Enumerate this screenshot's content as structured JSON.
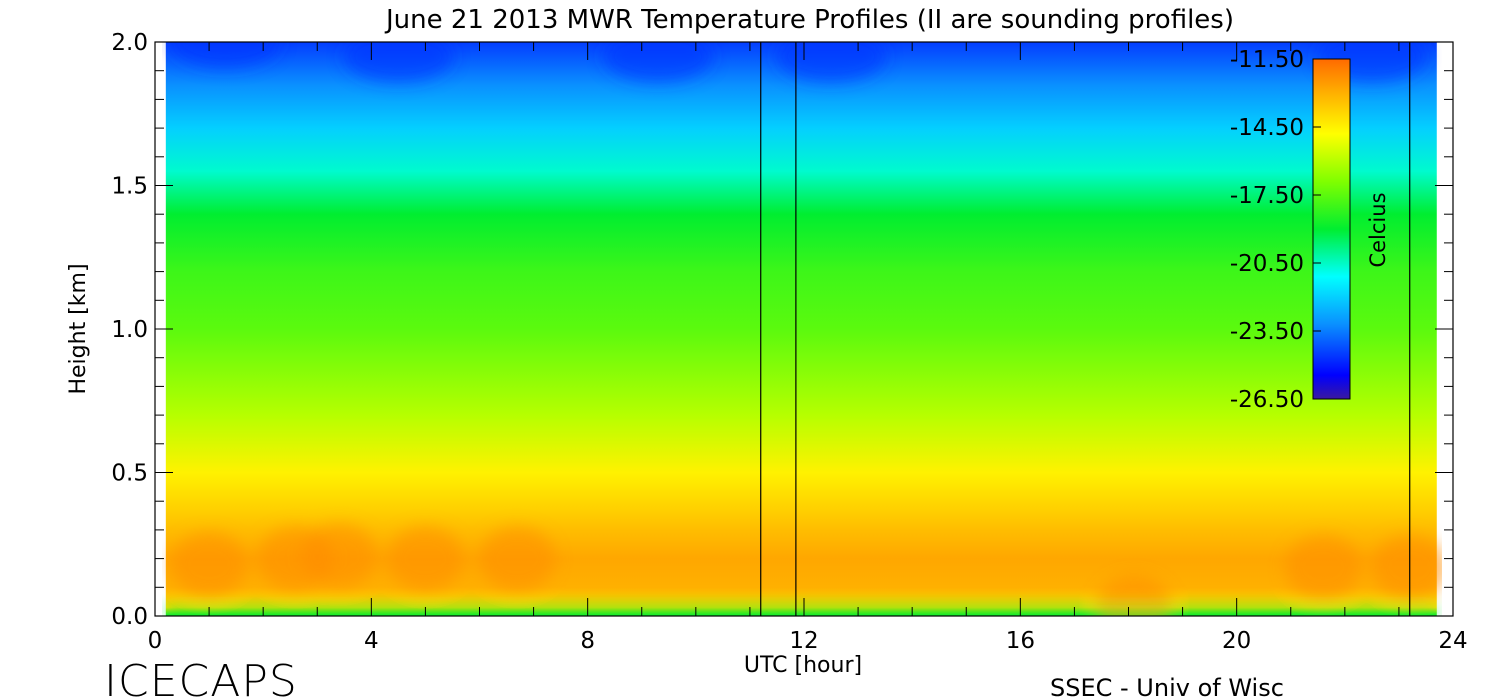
{
  "chart_data": {
    "type": "heatmap",
    "title": "June 21 2013 MWR Temperature Profiles (II are sounding profiles)",
    "xlabel": "UTC [hour]",
    "ylabel": "Height [km]",
    "xlim": [
      0,
      24
    ],
    "ylim": [
      0,
      2.0
    ],
    "x_ticks": [
      "0",
      "4",
      "8",
      "12",
      "16",
      "20",
      "24"
    ],
    "y_ticks": [
      "0.0",
      "0.5",
      "1.0",
      "1.5",
      "2.0"
    ],
    "colorbar": {
      "label": "Celcius",
      "range": [
        -26.5,
        -11.5
      ],
      "ticks": [
        "-11.50",
        "-14.50",
        "-17.50",
        "-20.50",
        "-23.50",
        "-26.50"
      ]
    },
    "data_extent_hours": [
      0.2,
      23.7
    ],
    "sounding_times_hours": [
      11.2,
      11.85,
      23.2
    ],
    "temperature_profile": {
      "height_km": [
        0.0,
        0.03,
        0.1,
        0.2,
        0.3,
        0.5,
        0.7,
        1.0,
        1.2,
        1.4,
        1.55,
        1.7,
        1.85,
        2.0
      ],
      "celsius": [
        -19.0,
        -14.0,
        -13.0,
        -12.8,
        -13.3,
        -14.5,
        -16.0,
        -17.5,
        -18.0,
        -19.0,
        -20.6,
        -22.0,
        -23.2,
        -24.5
      ]
    },
    "credit_left": "ICECAPS",
    "credit_right": "SSEC - Univ of Wisc"
  }
}
